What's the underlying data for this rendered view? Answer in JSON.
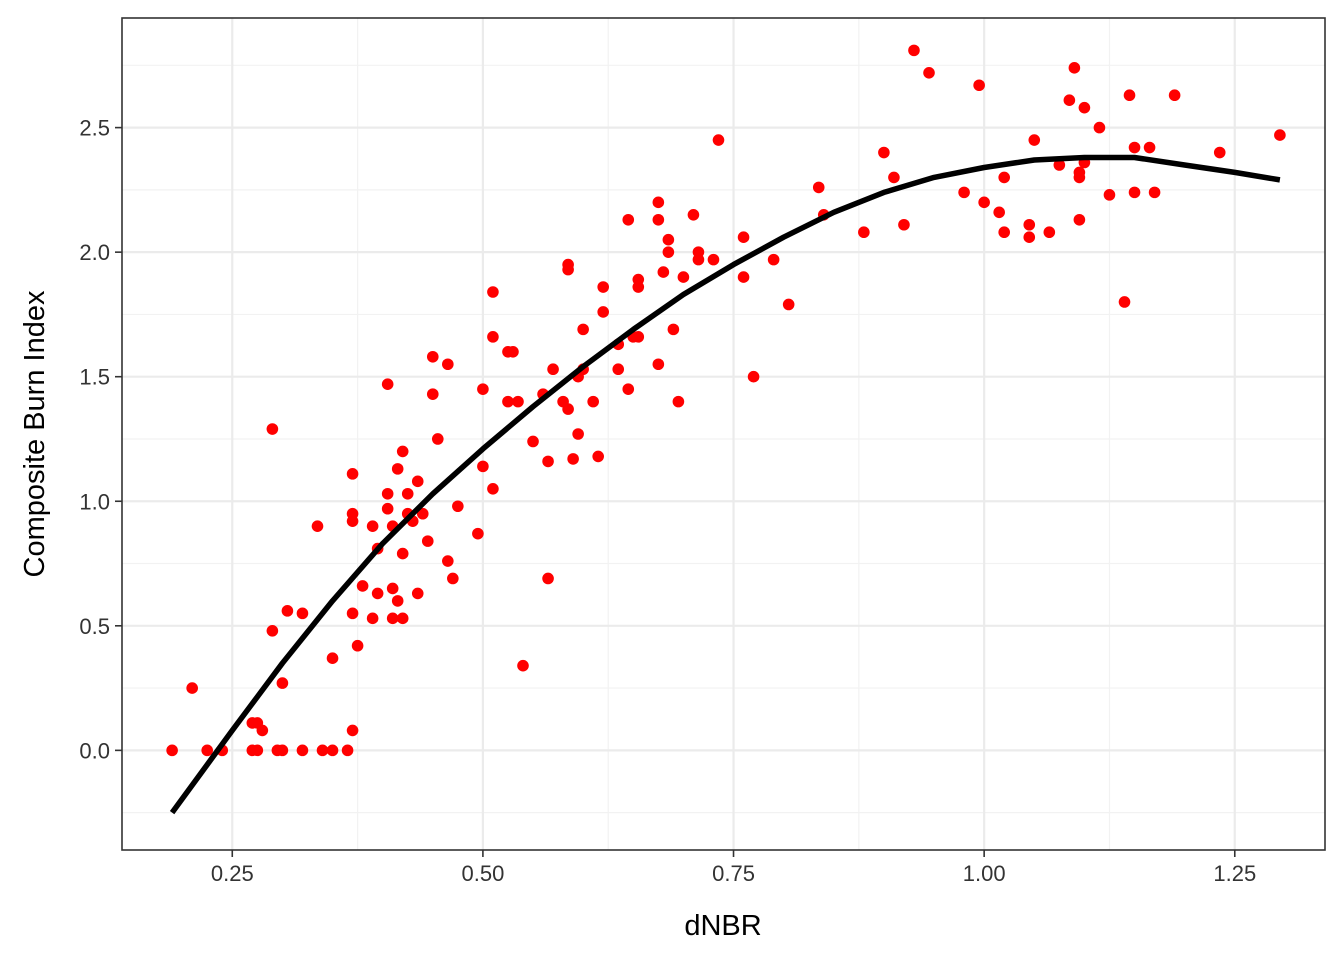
{
  "chart_data": {
    "type": "scatter",
    "xlabel": "dNBR",
    "ylabel": "Composite Burn Index",
    "xlim": [
      0.14,
      1.34
    ],
    "ylim": [
      -0.4,
      2.94
    ],
    "x_ticks": [
      0.25,
      0.5,
      0.75,
      1.0,
      1.25
    ],
    "x_tick_labels": [
      "0.25",
      "0.50",
      "0.75",
      "1.00",
      "1.25"
    ],
    "y_ticks": [
      0.0,
      0.5,
      1.0,
      1.5,
      2.0,
      2.5
    ],
    "y_tick_labels": [
      "0.0",
      "0.5",
      "1.0",
      "1.5",
      "2.0",
      "2.5"
    ],
    "grid": true,
    "legend": "none",
    "point_color": "#ff0000",
    "line_color": "#000000",
    "series": [
      {
        "type": "scatter",
        "points": [
          [
            0.19,
            0.0
          ],
          [
            0.21,
            0.25
          ],
          [
            0.225,
            0.0
          ],
          [
            0.24,
            0.0
          ],
          [
            0.27,
            0.11
          ],
          [
            0.275,
            0.11
          ],
          [
            0.27,
            0.0
          ],
          [
            0.275,
            0.0
          ],
          [
            0.28,
            0.08
          ],
          [
            0.29,
            1.29
          ],
          [
            0.29,
            0.48
          ],
          [
            0.295,
            0.0
          ],
          [
            0.3,
            0.27
          ],
          [
            0.3,
            0.0
          ],
          [
            0.305,
            0.56
          ],
          [
            0.32,
            0.55
          ],
          [
            0.32,
            0.0
          ],
          [
            0.335,
            0.9
          ],
          [
            0.34,
            0.0
          ],
          [
            0.35,
            0.37
          ],
          [
            0.35,
            0.0
          ],
          [
            0.365,
            0.0
          ],
          [
            0.37,
            1.11
          ],
          [
            0.37,
            0.95
          ],
          [
            0.37,
            0.92
          ],
          [
            0.37,
            0.55
          ],
          [
            0.37,
            0.08
          ],
          [
            0.375,
            0.42
          ],
          [
            0.38,
            0.66
          ],
          [
            0.39,
            0.53
          ],
          [
            0.39,
            0.9
          ],
          [
            0.395,
            0.63
          ],
          [
            0.395,
            0.81
          ],
          [
            0.405,
            0.97
          ],
          [
            0.405,
            1.03
          ],
          [
            0.405,
            1.47
          ],
          [
            0.41,
            0.9
          ],
          [
            0.41,
            0.65
          ],
          [
            0.41,
            0.53
          ],
          [
            0.415,
            0.6
          ],
          [
            0.415,
            1.13
          ],
          [
            0.42,
            0.79
          ],
          [
            0.42,
            0.53
          ],
          [
            0.42,
            1.2
          ],
          [
            0.425,
            1.03
          ],
          [
            0.425,
            0.95
          ],
          [
            0.43,
            0.92
          ],
          [
            0.435,
            0.63
          ],
          [
            0.435,
            1.08
          ],
          [
            0.44,
            0.95
          ],
          [
            0.445,
            0.84
          ],
          [
            0.45,
            1.43
          ],
          [
            0.45,
            1.58
          ],
          [
            0.455,
            1.25
          ],
          [
            0.465,
            1.55
          ],
          [
            0.465,
            0.76
          ],
          [
            0.47,
            0.69
          ],
          [
            0.475,
            0.98
          ],
          [
            0.495,
            0.87
          ],
          [
            0.5,
            1.45
          ],
          [
            0.5,
            1.14
          ],
          [
            0.51,
            1.84
          ],
          [
            0.51,
            1.66
          ],
          [
            0.51,
            1.05
          ],
          [
            0.525,
            1.6
          ],
          [
            0.53,
            1.6
          ],
          [
            0.525,
            1.4
          ],
          [
            0.535,
            1.4
          ],
          [
            0.54,
            0.34
          ],
          [
            0.55,
            1.24
          ],
          [
            0.56,
            1.43
          ],
          [
            0.565,
            0.69
          ],
          [
            0.565,
            1.16
          ],
          [
            0.57,
            1.53
          ],
          [
            0.58,
            1.4
          ],
          [
            0.585,
            1.95
          ],
          [
            0.585,
            1.93
          ],
          [
            0.585,
            1.37
          ],
          [
            0.59,
            1.17
          ],
          [
            0.595,
            1.27
          ],
          [
            0.595,
            1.5
          ],
          [
            0.6,
            1.69
          ],
          [
            0.6,
            1.53
          ],
          [
            0.61,
            1.4
          ],
          [
            0.615,
            1.18
          ],
          [
            0.62,
            1.86
          ],
          [
            0.62,
            1.76
          ],
          [
            0.635,
            1.63
          ],
          [
            0.635,
            1.53
          ],
          [
            0.645,
            1.45
          ],
          [
            0.645,
            2.13
          ],
          [
            0.65,
            1.66
          ],
          [
            0.655,
            1.89
          ],
          [
            0.655,
            1.86
          ],
          [
            0.655,
            1.66
          ],
          [
            0.675,
            2.2
          ],
          [
            0.675,
            2.13
          ],
          [
            0.675,
            1.55
          ],
          [
            0.68,
            1.92
          ],
          [
            0.685,
            2.05
          ],
          [
            0.685,
            2.0
          ],
          [
            0.69,
            1.69
          ],
          [
            0.695,
            1.4
          ],
          [
            0.7,
            1.9
          ],
          [
            0.71,
            2.15
          ],
          [
            0.715,
            2.0
          ],
          [
            0.715,
            1.97
          ],
          [
            0.73,
            1.97
          ],
          [
            0.735,
            2.45
          ],
          [
            0.76,
            2.06
          ],
          [
            0.76,
            1.9
          ],
          [
            0.77,
            1.5
          ],
          [
            0.79,
            1.97
          ],
          [
            0.805,
            1.79
          ],
          [
            0.835,
            2.26
          ],
          [
            0.84,
            2.15
          ],
          [
            0.88,
            2.08
          ],
          [
            0.9,
            2.4
          ],
          [
            0.91,
            2.3
          ],
          [
            0.92,
            2.11
          ],
          [
            0.93,
            2.81
          ],
          [
            0.945,
            2.72
          ],
          [
            0.98,
            2.24
          ],
          [
            0.995,
            2.67
          ],
          [
            1.0,
            2.2
          ],
          [
            1.015,
            2.16
          ],
          [
            1.02,
            2.3
          ],
          [
            1.02,
            2.08
          ],
          [
            1.045,
            2.11
          ],
          [
            1.045,
            2.06
          ],
          [
            1.05,
            2.45
          ],
          [
            1.065,
            2.08
          ],
          [
            1.075,
            2.35
          ],
          [
            1.085,
            2.61
          ],
          [
            1.09,
            2.74
          ],
          [
            1.095,
            2.32
          ],
          [
            1.095,
            2.3
          ],
          [
            1.095,
            2.13
          ],
          [
            1.1,
            2.58
          ],
          [
            1.1,
            2.36
          ],
          [
            1.115,
            2.5
          ],
          [
            1.125,
            2.23
          ],
          [
            1.14,
            1.8
          ],
          [
            1.145,
            2.63
          ],
          [
            1.15,
            2.42
          ],
          [
            1.15,
            2.24
          ],
          [
            1.165,
            2.42
          ],
          [
            1.17,
            2.24
          ],
          [
            1.19,
            2.63
          ],
          [
            1.235,
            2.4
          ],
          [
            1.295,
            2.47
          ]
        ]
      },
      {
        "type": "line",
        "points": [
          [
            0.19,
            -0.25
          ],
          [
            0.25,
            0.08
          ],
          [
            0.3,
            0.35
          ],
          [
            0.35,
            0.6
          ],
          [
            0.4,
            0.83
          ],
          [
            0.45,
            1.03
          ],
          [
            0.5,
            1.21
          ],
          [
            0.55,
            1.38
          ],
          [
            0.6,
            1.54
          ],
          [
            0.65,
            1.69
          ],
          [
            0.7,
            1.83
          ],
          [
            0.75,
            1.95
          ],
          [
            0.8,
            2.06
          ],
          [
            0.85,
            2.16
          ],
          [
            0.9,
            2.24
          ],
          [
            0.95,
            2.3
          ],
          [
            1.0,
            2.34
          ],
          [
            1.05,
            2.37
          ],
          [
            1.1,
            2.38
          ],
          [
            1.15,
            2.38
          ],
          [
            1.2,
            2.35
          ],
          [
            1.25,
            2.32
          ],
          [
            1.295,
            2.29
          ]
        ]
      }
    ]
  }
}
